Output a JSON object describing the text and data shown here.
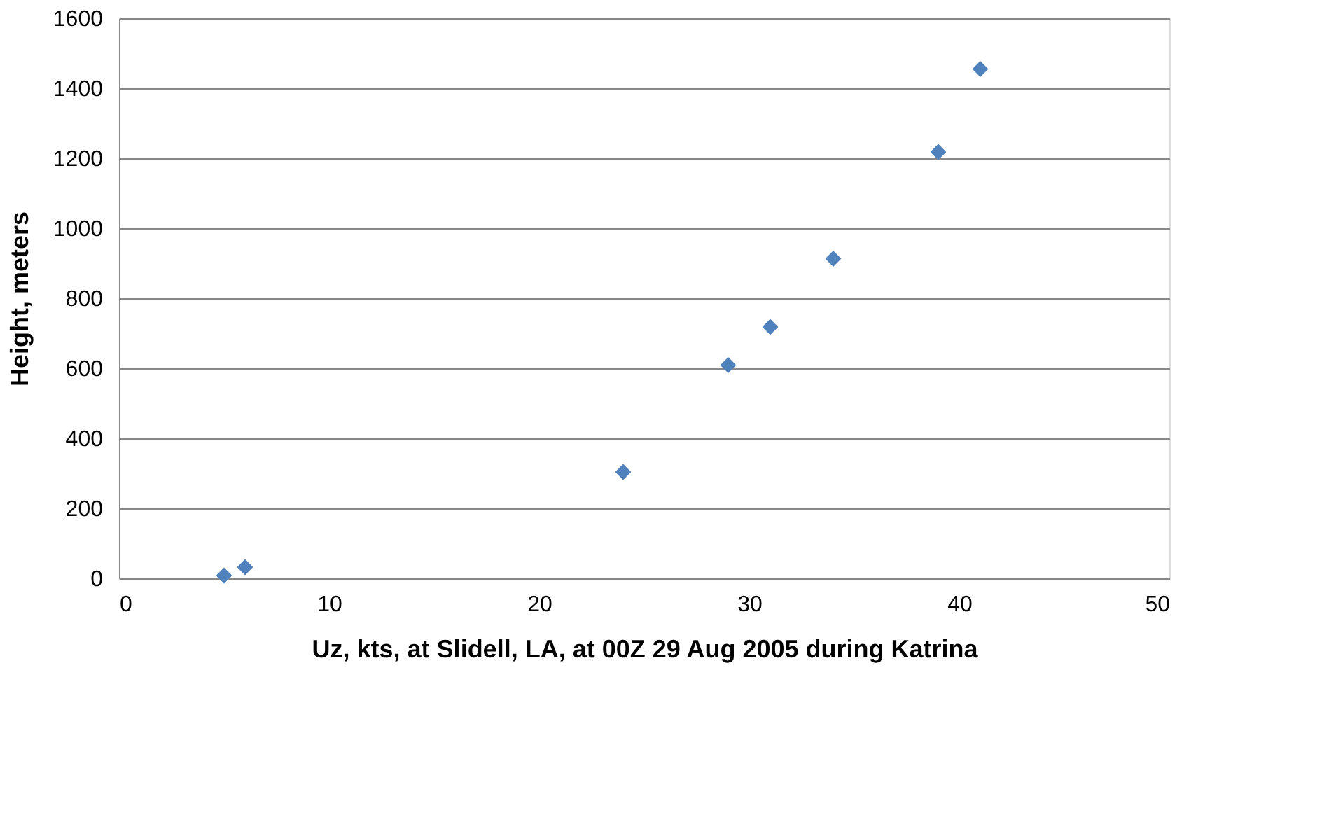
{
  "chart_data": {
    "type": "scatter",
    "xlabel": "Uz, kts, at Slidell, LA, at 00Z 29 Aug 2005 during Katrina",
    "ylabel": "Height, meters",
    "x": [
      5,
      6,
      24,
      29,
      31,
      34,
      39,
      41
    ],
    "series": [
      {
        "color": "#4f81bd",
        "values": [
          8,
          32,
          304,
          609,
          718,
          913,
          1218,
          1455
        ]
      }
    ],
    "xlim": [
      0,
      50
    ],
    "xticks": [
      0,
      10,
      20,
      30,
      40,
      50
    ],
    "ylim": [
      0,
      1600
    ],
    "yticks": [
      0,
      200,
      400,
      600,
      800,
      1000,
      1200,
      1400,
      1600
    ],
    "grid": "y",
    "marker": "diamond"
  }
}
